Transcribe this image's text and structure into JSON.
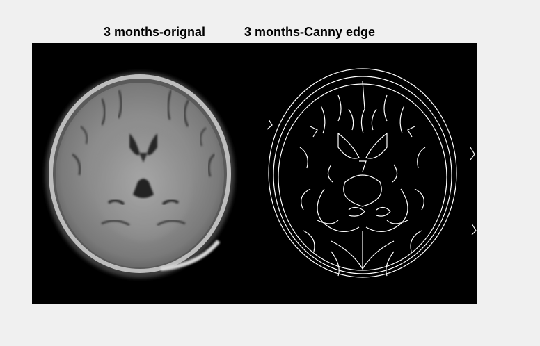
{
  "figure": {
    "background_color": "#f0f0f0",
    "title_left": "3 months-orignal",
    "title_right": "3 months-Canny edge"
  },
  "images": {
    "left": {
      "content": "grayscale axial brain MRI scan",
      "colormap": "gray"
    },
    "right": {
      "content": "binary Canny edge map of the scan",
      "colormap": "black-white"
    }
  }
}
